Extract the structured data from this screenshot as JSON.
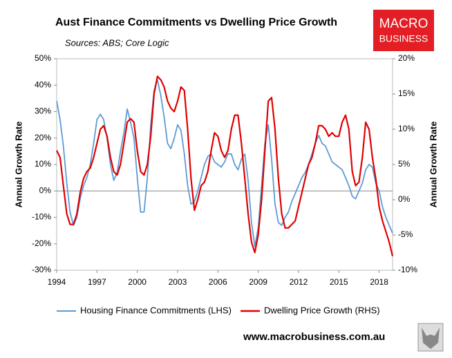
{
  "chart_data": {
    "type": "line",
    "title": "Aust Finance Commitments vs Dwelling Price Growth",
    "subtitle": "Sources: ABS; Core Logic",
    "ylabel": "Annual Growth Rate",
    "y2label": "Annual Growth Rate",
    "logo": {
      "line1": "MACRO",
      "line2": "BUSINESS"
    },
    "url": "www.macrobusiness.com.au",
    "xlim": [
      1994,
      2019
    ],
    "xticks": [
      1994,
      1997,
      2000,
      2003,
      2006,
      2009,
      2012,
      2015,
      2018
    ],
    "ylim": [
      -30,
      50
    ],
    "yticks": [
      {
        "value": -30,
        "label": "-30%"
      },
      {
        "value": -20,
        "label": "-20%"
      },
      {
        "value": -10,
        "label": "-10%"
      },
      {
        "value": 0,
        "label": "0%"
      },
      {
        "value": 10,
        "label": "10%"
      },
      {
        "value": 20,
        "label": "20%"
      },
      {
        "value": 30,
        "label": "30%"
      },
      {
        "value": 40,
        "label": "40%"
      },
      {
        "value": 50,
        "label": "50%"
      }
    ],
    "y2lim": [
      -10,
      20
    ],
    "y2ticks": [
      {
        "value": -10,
        "label": "-10%"
      },
      {
        "value": -5,
        "label": "-5%"
      },
      {
        "value": 0,
        "label": "0%"
      },
      {
        "value": 5,
        "label": "5%"
      },
      {
        "value": 10,
        "label": "10%"
      },
      {
        "value": 15,
        "label": "15%"
      },
      {
        "value": 20,
        "label": "20%"
      }
    ],
    "grid": false,
    "legend": "bottom",
    "x": [
      1994,
      1994.25,
      1994.5,
      1994.75,
      1995,
      1995.25,
      1995.5,
      1995.75,
      1996,
      1996.25,
      1996.5,
      1996.75,
      1997,
      1997.25,
      1997.5,
      1997.75,
      1998,
      1998.25,
      1998.5,
      1998.75,
      1999,
      1999.25,
      1999.5,
      1999.75,
      2000,
      2000.25,
      2000.5,
      2000.75,
      2001,
      2001.25,
      2001.5,
      2001.75,
      2002,
      2002.25,
      2002.5,
      2002.75,
      2003,
      2003.25,
      2003.5,
      2003.75,
      2004,
      2004.25,
      2004.5,
      2004.75,
      2005,
      2005.25,
      2005.5,
      2005.75,
      2006,
      2006.25,
      2006.5,
      2006.75,
      2007,
      2007.25,
      2007.5,
      2007.75,
      2008,
      2008.25,
      2008.5,
      2008.75,
      2009,
      2009.25,
      2009.5,
      2009.75,
      2010,
      2010.25,
      2010.5,
      2010.75,
      2011,
      2011.25,
      2011.5,
      2011.75,
      2012,
      2012.25,
      2012.5,
      2012.75,
      2013,
      2013.25,
      2013.5,
      2013.75,
      2014,
      2014.25,
      2014.5,
      2014.75,
      2015,
      2015.25,
      2015.5,
      2015.75,
      2016,
      2016.25,
      2016.5,
      2016.75,
      2017,
      2017.25,
      2017.5,
      2017.75,
      2018,
      2018.25,
      2018.5,
      2018.75,
      2019
    ],
    "series": [
      {
        "name": "Housing Finance Commitments (LHS)",
        "color": "#5b9bd5",
        "axis": "y",
        "values": [
          34,
          27,
          17,
          3,
          -8,
          -13,
          -10,
          -3,
          2,
          5,
          10,
          18,
          27,
          29,
          27,
          20,
          10,
          4,
          7,
          15,
          22,
          31,
          26,
          20,
          5,
          -8,
          -8,
          5,
          25,
          38,
          42,
          36,
          28,
          18,
          16,
          20,
          25,
          23,
          14,
          2,
          -5,
          -4,
          0,
          5,
          10,
          13,
          14,
          11,
          10,
          9,
          11,
          14,
          14,
          10,
          8,
          12,
          14,
          4,
          -12,
          -21,
          -14,
          2,
          18,
          25,
          12,
          -5,
          -12,
          -13,
          -10,
          -8,
          -4,
          -1,
          2,
          5,
          7,
          10,
          14,
          18,
          21,
          18,
          17,
          14,
          11,
          10,
          9,
          8,
          5,
          2,
          -2,
          -3,
          0,
          3,
          8,
          10,
          9,
          3,
          0,
          -6,
          -10,
          -13,
          -16
        ]
      },
      {
        "name": "Dwelling Price Growth (RHS)",
        "color": "#e00000",
        "axis": "y2",
        "values": [
          7,
          6,
          2,
          -2,
          -3.5,
          -3.5,
          -2,
          1,
          3,
          4,
          4.5,
          6,
          8,
          10,
          10.5,
          9,
          6,
          4,
          3.5,
          5,
          8,
          11,
          11.5,
          11,
          7,
          4,
          3.5,
          5,
          9,
          15,
          17.5,
          17,
          16,
          14,
          13,
          12.5,
          14,
          16,
          15.5,
          10,
          3,
          -1.5,
          0,
          2,
          2.5,
          4,
          7,
          9.5,
          9,
          7,
          6,
          7,
          10,
          12,
          12,
          8,
          3,
          -2,
          -6,
          -7.5,
          -5,
          0,
          7,
          14,
          14.5,
          10,
          3,
          -2,
          -4,
          -4,
          -3.5,
          -3,
          -1,
          1,
          3,
          5,
          6,
          8,
          10.5,
          10.5,
          10,
          9,
          9.5,
          9,
          9,
          11,
          12,
          10,
          4,
          2,
          2.5,
          6,
          11,
          10,
          6,
          3,
          -1,
          -3,
          -4.5,
          -6,
          -8
        ]
      }
    ]
  }
}
